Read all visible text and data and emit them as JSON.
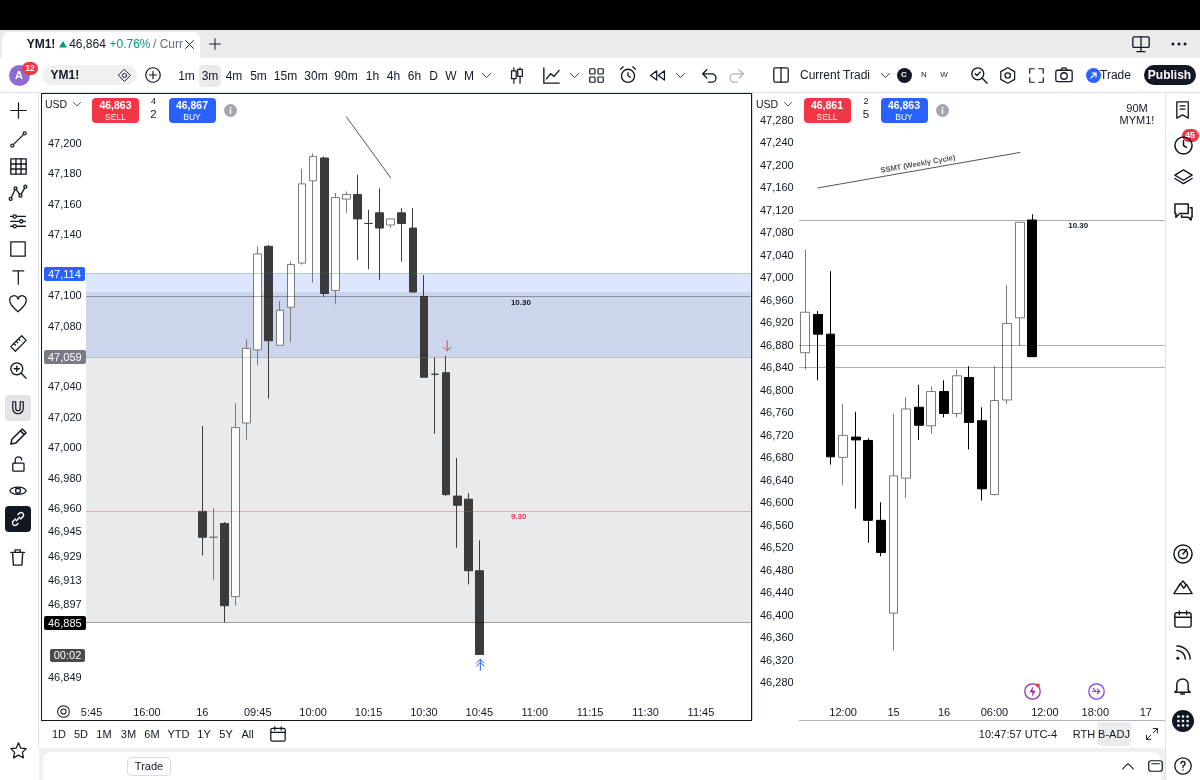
{
  "chart_data": [
    {
      "type": "candlestick",
      "title": "YM1!",
      "categories": [
        "5:45",
        null,
        null,
        null,
        null,
        "16:00",
        null,
        null,
        null,
        null,
        "16",
        null,
        null,
        null,
        null,
        "09:45",
        null,
        null,
        null,
        null,
        "10:00",
        null,
        null,
        null,
        null,
        "10:15",
        null,
        null,
        null,
        null,
        "10:30",
        null,
        null,
        null,
        null,
        "10:45",
        null,
        null,
        null,
        null,
        "11:00",
        null,
        null,
        null,
        null,
        "11:15",
        null,
        null,
        null,
        null,
        "11:30",
        null,
        null,
        null,
        null,
        "11:45",
        null,
        null,
        null,
        null
      ],
      "ohlc": [
        null,
        null,
        null,
        null,
        null,
        null,
        null,
        null,
        null,
        null,
        [
          46958,
          47014,
          46929,
          46941
        ],
        [
          46941,
          46960,
          46913,
          46941
        ],
        [
          46950,
          46951,
          46885,
          46896
        ],
        [
          46902,
          47029,
          46896,
          47013
        ],
        [
          47016,
          47071,
          47005,
          47065
        ],
        [
          47064,
          47132,
          47054,
          47127
        ],
        [
          47132,
          47133,
          47032,
          47070
        ],
        [
          47067,
          47096,
          47067,
          47090
        ],
        [
          47092,
          47122,
          47069,
          47120
        ],
        [
          47121,
          47183,
          47120,
          47173
        ],
        [
          47175,
          47193,
          47108,
          47191
        ],
        [
          47190,
          47191,
          47099,
          47101
        ],
        [
          47103,
          47167,
          47094,
          47164
        ],
        [
          47163,
          47168,
          47154,
          47166
        ],
        [
          47166,
          47179,
          47123,
          47150
        ],
        [
          47147,
          47156,
          47117,
          47147
        ],
        [
          47154,
          47170,
          47110,
          47144
        ],
        [
          47146,
          47150,
          47144,
          47150
        ],
        [
          47154,
          47157,
          47122,
          47147
        ],
        [
          47144,
          47157,
          47102,
          47102
        ],
        [
          47099,
          47113,
          47046,
          47046
        ],
        [
          47048,
          47059,
          47009,
          47048
        ],
        [
          47049,
          47060,
          46968,
          46969
        ],
        [
          46968,
          46993,
          46934,
          46962
        ],
        [
          46966,
          46970,
          46910,
          46919
        ],
        [
          46919,
          46939,
          46864,
          46864
        ],
        null,
        null,
        null,
        null,
        null,
        null,
        null,
        null,
        null,
        null,
        null,
        null,
        null,
        null,
        null,
        null,
        null,
        null,
        null,
        null,
        null,
        null,
        null,
        null
      ],
      "colors": [
        null,
        null,
        null,
        null,
        null,
        null,
        null,
        null,
        null,
        null,
        "#3b3b3b",
        "#7a7a7a",
        "#3b3b3b",
        "#ffffff",
        "#ffffff",
        "#ffffff",
        "#3b3b3b",
        "#ffffff",
        "#ffffff",
        "#ffffff",
        "#ffffff",
        "#3b3b3b",
        "#ffffff",
        "#ffffff",
        "#3b3b3b",
        "#3b3b3b",
        "#3b3b3b",
        "#ffffff",
        "#3b3b3b",
        "#3b3b3b",
        "#3b3b3b",
        "#3b3b3b",
        "#3b3b3b",
        "#3b3b3b",
        "#3b3b3b",
        "#3b3b3b",
        null,
        null,
        null,
        null,
        null,
        null,
        null,
        null,
        null,
        null,
        null,
        null,
        null,
        null,
        null,
        null,
        null,
        null,
        null,
        null,
        null,
        null,
        null,
        null
      ],
      "series": [
        {
          "type": "line",
          "color": "#555555",
          "values": [
            null,
            null,
            null,
            null,
            null,
            null,
            null,
            null,
            null,
            null,
            null,
            null,
            null,
            null,
            null,
            null,
            null,
            null,
            null,
            null,
            null,
            null,
            null,
            47217,
            null,
            null,
            null,
            47177,
            null,
            null,
            null,
            null,
            null,
            null,
            null,
            null,
            null,
            null,
            null,
            null,
            null,
            null,
            null,
            null,
            null,
            null,
            null,
            null,
            null,
            null,
            null,
            null,
            null,
            null,
            null,
            null,
            null,
            null,
            null,
            null
          ]
        }
      ],
      "ylim": [
        46821,
        47232
      ],
      "yticks": [
        {
          "value": 47200,
          "label": "47,200"
        },
        {
          "value": 47180,
          "label": "47,180"
        },
        {
          "value": 47160,
          "label": "47,160"
        },
        {
          "value": 47140,
          "label": "47,140"
        },
        {
          "value": 47100,
          "label": "47,100"
        },
        {
          "value": 47080,
          "label": "47,080"
        },
        {
          "value": 47040,
          "label": "47,040"
        },
        {
          "value": 47020,
          "label": "47,020"
        },
        {
          "value": 47000,
          "label": "47,000"
        },
        {
          "value": 46980,
          "label": "46,980"
        },
        {
          "value": 46960,
          "label": "46,960"
        },
        {
          "value": 46945,
          "label": "46,945"
        },
        {
          "value": 46929,
          "label": "46,929"
        },
        {
          "value": 46913,
          "label": "46,913"
        },
        {
          "value": 46897,
          "label": "46,897"
        },
        {
          "value": 46849,
          "label": "46,849"
        }
      ],
      "ref_lines": [
        {
          "axis": "y",
          "value": 47114,
          "label": "47,114",
          "color": "#2962ff"
        },
        {
          "axis": "y",
          "value": 47099,
          "color": "#131722"
        },
        {
          "axis": "y",
          "value": 47059,
          "label": "47,059",
          "color": "#787b86"
        },
        {
          "axis": "y",
          "value": 46958,
          "color": "#f23645"
        },
        {
          "axis": "y",
          "value": 46885,
          "label": "46,885",
          "color": "#000000"
        }
      ],
      "bands": [
        {
          "axis": "y",
          "from": 47059,
          "to": 47114,
          "color": "#2962ff"
        },
        {
          "axis": "y",
          "from": 46885,
          "to": 47059,
          "color": "#787b86"
        },
        {
          "axis": "y",
          "from": 47059,
          "to": 47102,
          "color": "#787b86"
        }
      ],
      "annotations": [
        "46,864",
        "+0.76%",
        "/ Curr",
        "A",
        "12",
        "YM1!",
        "1m",
        "3m",
        "4m",
        "5m",
        "15m",
        "30m",
        "90m",
        "1h",
        "4h",
        "6h",
        "D",
        "W",
        "M",
        "Current Tradi",
        "C",
        "N",
        "W",
        "Trade",
        "Publish",
        "USD",
        "46,863",
        "SELL",
        "4",
        "2",
        "46,867",
        "BUY",
        "1D",
        "5D",
        "1M",
        "3M",
        "6M",
        "YTD",
        "1Y",
        "5Y",
        "All",
        "10:47:57 UTC-4",
        "RTH",
        "B-ADJ",
        "Trade",
        "45",
        {
          "text": "10.30",
          "y": 47099
        },
        {
          "text": "9.30",
          "y": 46958
        },
        "00:02"
      ]
    },
    {
      "type": "candlestick",
      "title": "90M",
      "subtitle": "MYM1!",
      "categories": [
        null,
        null,
        null,
        "12:00",
        null,
        null,
        null,
        "15",
        null,
        null,
        null,
        "16",
        null,
        null,
        null,
        "06:00",
        null,
        null,
        null,
        "12:00",
        null,
        null,
        null,
        "18:00",
        null,
        null,
        null,
        "17",
        null
      ],
      "ohlc": [
        [
          46866,
          47049,
          46836,
          46938
        ],
        [
          46934,
          46940,
          46817,
          46899
        ],
        [
          46899,
          47011,
          46667,
          46681
        ],
        [
          46680,
          46775,
          46631,
          46719
        ],
        [
          46716,
          46761,
          46589,
          46711
        ],
        [
          46710,
          46714,
          46528,
          46568
        ],
        [
          46568,
          46600,
          46504,
          46511
        ],
        [
          46403,
          46757,
          46337,
          46647
        ],
        [
          46643,
          46787,
          46608,
          46766
        ],
        [
          46769,
          46809,
          46711,
          46737
        ],
        [
          46736,
          46806,
          46722,
          46797
        ],
        [
          46797,
          46817,
          46751,
          46758
        ],
        [
          46758,
          46836,
          46751,
          46825
        ],
        [
          46822,
          46842,
          46694,
          46742
        ],
        [
          46745,
          46769,
          46603,
          46624
        ],
        [
          46614,
          46842,
          46612,
          46781
        ],
        [
          46782,
          46986,
          46775,
          46918
        ],
        [
          46928,
          47098,
          46879,
          47098
        ],
        [
          47102,
          47112,
          46859,
          46859
        ],
        null,
        null,
        null,
        null,
        null,
        null,
        null,
        null,
        null,
        null
      ],
      "colors": [
        "#ffffff",
        "#000000",
        "#000000",
        "#ffffff",
        "#000000",
        "#000000",
        "#000000",
        "#ffffff",
        "#ffffff",
        "#000000",
        "#ffffff",
        "#000000",
        "#ffffff",
        "#000000",
        "#000000",
        "#ffffff",
        "#ffffff",
        "#ffffff",
        "#000000",
        null,
        null,
        null,
        null,
        null,
        null,
        null,
        null,
        null,
        null
      ],
      "series": [
        {
          "type": "line",
          "name": "SSMT (Weekly Cycle)",
          "color": "#555555",
          "values": [
            null,
            47159,
            null,
            null,
            null,
            null,
            null,
            null,
            null,
            null,
            null,
            null,
            null,
            null,
            null,
            null,
            null,
            47222,
            null,
            null,
            null,
            null,
            null,
            null,
            null,
            null,
            null,
            null,
            null
          ]
        }
      ],
      "ylim": [
        46213,
        47326
      ],
      "yticks": [
        {
          "value": 47280,
          "label": "47,280"
        },
        {
          "value": 47240,
          "label": "47,240"
        },
        {
          "value": 47200,
          "label": "47,200"
        },
        {
          "value": 47160,
          "label": "47,160"
        },
        {
          "value": 47120,
          "label": "47,120"
        },
        {
          "value": 47080,
          "label": "47,080"
        },
        {
          "value": 47040,
          "label": "47,040"
        },
        {
          "value": 47000,
          "label": "47,000"
        },
        {
          "value": 46960,
          "label": "46,960"
        },
        {
          "value": 46920,
          "label": "46,920"
        },
        {
          "value": 46880,
          "label": "46,880"
        },
        {
          "value": 46840,
          "label": "46,840"
        },
        {
          "value": 46800,
          "label": "46,800"
        },
        {
          "value": 46760,
          "label": "46,760"
        },
        {
          "value": 46720,
          "label": "46,720"
        },
        {
          "value": 46680,
          "label": "46,680"
        },
        {
          "value": 46640,
          "label": "46,640"
        },
        {
          "value": 46600,
          "label": "46,600"
        },
        {
          "value": 46560,
          "label": "46,560"
        },
        {
          "value": 46520,
          "label": "46,520"
        },
        {
          "value": 46480,
          "label": "46,480"
        },
        {
          "value": 46440,
          "label": "46,440"
        },
        {
          "value": 46400,
          "label": "46,400"
        },
        {
          "value": 46360,
          "label": "46,360"
        },
        {
          "value": 46320,
          "label": "46,320"
        },
        {
          "value": 46280,
          "label": "46,280"
        }
      ],
      "ref_lines": [
        {
          "axis": "y",
          "value": 47102,
          "color": "#131722"
        },
        {
          "axis": "y",
          "value": 46879,
          "color": "#131722"
        },
        {
          "axis": "y",
          "value": 46841,
          "color": "#131722"
        }
      ],
      "annotations": [
        "USD",
        "46,861",
        "SELL",
        "2",
        "5",
        "46,863",
        "BUY",
        {
          "text": "10.30",
          "y": 47102
        }
      ]
    }
  ]
}
